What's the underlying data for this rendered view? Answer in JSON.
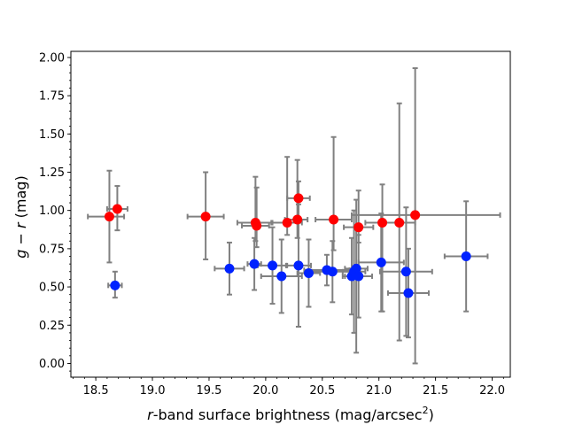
{
  "chart_data": {
    "type": "scatter",
    "xlabel_prefix": "r",
    "xlabel_rest": "-band surface brightness (mag/arcsec",
    "xlabel_sup": "2",
    "xlabel_close": ")",
    "ylabel_g": "g",
    "ylabel_minus": " − ",
    "ylabel_r": "r",
    "ylabel_unit": " (mag)",
    "xlim": [
      18.28,
      22.16
    ],
    "ylim": [
      -0.09,
      2.04
    ],
    "xticks": [
      18.5,
      19.0,
      19.5,
      20.0,
      20.5,
      21.0,
      21.5,
      22.0
    ],
    "xtick_labels": [
      "18.5",
      "19.0",
      "19.5",
      "20.0",
      "20.5",
      "21.0",
      "21.5",
      "22.0"
    ],
    "yticks": [
      0.0,
      0.25,
      0.5,
      0.75,
      1.0,
      1.25,
      1.5,
      1.75,
      2.0
    ],
    "ytick_labels": [
      "0.00",
      "0.25",
      "0.50",
      "0.75",
      "1.00",
      "1.25",
      "1.50",
      "1.75",
      "2.00"
    ],
    "x_minor_step": 0.1,
    "y_minor_step": 0.05,
    "colors": {
      "red": "#ff0000",
      "blue": "#0022ff",
      "errorbar": "#808080"
    },
    "series": [
      {
        "color_key": "red",
        "points": [
          {
            "x": 18.62,
            "y": 0.96,
            "xerr_lo": 0.19,
            "xerr_hi": 0.13,
            "yerr_lo": 0.3,
            "yerr_hi": 0.3
          },
          {
            "x": 18.69,
            "y": 1.01,
            "xerr_lo": 0.09,
            "xerr_hi": 0.09,
            "yerr_lo": 0.14,
            "yerr_hi": 0.15
          },
          {
            "x": 19.47,
            "y": 0.96,
            "xerr_lo": 0.16,
            "xerr_hi": 0.16,
            "yerr_lo": 0.28,
            "yerr_hi": 0.29
          },
          {
            "x": 19.91,
            "y": 0.92,
            "xerr_lo": 0.16,
            "xerr_hi": 0.14,
            "yerr_lo": 0.12,
            "yerr_hi": 0.3
          },
          {
            "x": 19.92,
            "y": 0.9,
            "xerr_lo": 0.13,
            "xerr_hi": 0.11,
            "yerr_lo": 0.14,
            "yerr_hi": 0.25
          },
          {
            "x": 20.19,
            "y": 0.92,
            "xerr_lo": 0.13,
            "xerr_hi": 0.13,
            "yerr_lo": 0.08,
            "yerr_hi": 0.43
          },
          {
            "x": 20.28,
            "y": 0.94,
            "xerr_lo": 0.11,
            "xerr_hi": 0.09,
            "yerr_lo": 0.12,
            "yerr_hi": 0.39
          },
          {
            "x": 20.29,
            "y": 1.08,
            "xerr_lo": 0.1,
            "xerr_hi": 0.1,
            "yerr_lo": 0.14,
            "yerr_hi": 0.11
          },
          {
            "x": 20.6,
            "y": 0.94,
            "xerr_lo": 0.16,
            "xerr_hi": 0.16,
            "yerr_lo": 0.2,
            "yerr_hi": 0.54
          },
          {
            "x": 20.82,
            "y": 0.89,
            "xerr_lo": 0.13,
            "xerr_hi": 0.13,
            "yerr_lo": 0.1,
            "yerr_hi": 0.24
          },
          {
            "x": 21.03,
            "y": 0.92,
            "xerr_lo": 0.15,
            "xerr_hi": 0.15,
            "yerr_lo": 0.58,
            "yerr_hi": 0.25
          },
          {
            "x": 21.18,
            "y": 0.92,
            "xerr_lo": 0.16,
            "xerr_hi": 0.14,
            "yerr_lo": 0.77,
            "yerr_hi": 0.78
          },
          {
            "x": 21.32,
            "y": 0.97,
            "xerr_lo": 0.56,
            "xerr_hi": 0.75,
            "yerr_lo": 0.97,
            "yerr_hi": 0.96
          }
        ]
      },
      {
        "color_key": "blue",
        "points": [
          {
            "x": 18.67,
            "y": 0.51,
            "xerr_lo": 0.06,
            "xerr_hi": 0.06,
            "yerr_lo": 0.08,
            "yerr_hi": 0.09
          },
          {
            "x": 19.68,
            "y": 0.62,
            "xerr_lo": 0.13,
            "xerr_hi": 0.13,
            "yerr_lo": 0.17,
            "yerr_hi": 0.17
          },
          {
            "x": 19.9,
            "y": 0.65,
            "xerr_lo": 0.06,
            "xerr_hi": 0.06,
            "yerr_lo": 0.17,
            "yerr_hi": 0.17
          },
          {
            "x": 20.06,
            "y": 0.64,
            "xerr_lo": 0.13,
            "xerr_hi": 0.13,
            "yerr_lo": 0.25,
            "yerr_hi": 0.25
          },
          {
            "x": 20.14,
            "y": 0.57,
            "xerr_lo": 0.18,
            "xerr_hi": 0.18,
            "yerr_lo": 0.24,
            "yerr_hi": 0.24
          },
          {
            "x": 20.29,
            "y": 0.64,
            "xerr_lo": 0.11,
            "xerr_hi": 0.11,
            "yerr_lo": 0.4,
            "yerr_hi": 0.4
          },
          {
            "x": 20.38,
            "y": 0.59,
            "xerr_lo": 0.1,
            "xerr_hi": 0.1,
            "yerr_lo": 0.22,
            "yerr_hi": 0.22
          },
          {
            "x": 20.54,
            "y": 0.61,
            "xerr_lo": 0.2,
            "xerr_hi": 0.2,
            "yerr_lo": 0.1,
            "yerr_hi": 0.1
          },
          {
            "x": 20.59,
            "y": 0.6,
            "xerr_lo": 0.18,
            "xerr_hi": 0.18,
            "yerr_lo": 0.2,
            "yerr_hi": 0.2
          },
          {
            "x": 20.76,
            "y": 0.57,
            "xerr_lo": 0.08,
            "xerr_hi": 0.08,
            "yerr_lo": 0.25,
            "yerr_hi": 0.25
          },
          {
            "x": 20.78,
            "y": 0.6,
            "xerr_lo": 0.1,
            "xerr_hi": 0.1,
            "yerr_lo": 0.4,
            "yerr_hi": 0.4
          },
          {
            "x": 20.8,
            "y": 0.62,
            "xerr_lo": 0.1,
            "xerr_hi": 0.1,
            "yerr_lo": 0.55,
            "yerr_hi": 0.45
          },
          {
            "x": 20.82,
            "y": 0.57,
            "xerr_lo": 0.12,
            "xerr_hi": 0.12,
            "yerr_lo": 0.27,
            "yerr_hi": 0.27
          },
          {
            "x": 21.02,
            "y": 0.66,
            "xerr_lo": 0.2,
            "xerr_hi": 0.2,
            "yerr_lo": 0.32,
            "yerr_hi": 0.32
          },
          {
            "x": 21.24,
            "y": 0.6,
            "xerr_lo": 0.23,
            "xerr_hi": 0.23,
            "yerr_lo": 0.42,
            "yerr_hi": 0.42
          },
          {
            "x": 21.26,
            "y": 0.46,
            "xerr_lo": 0.18,
            "xerr_hi": 0.18,
            "yerr_lo": 0.29,
            "yerr_hi": 0.29
          },
          {
            "x": 21.77,
            "y": 0.7,
            "xerr_lo": 0.19,
            "xerr_hi": 0.19,
            "yerr_lo": 0.36,
            "yerr_hi": 0.36
          }
        ]
      }
    ]
  }
}
